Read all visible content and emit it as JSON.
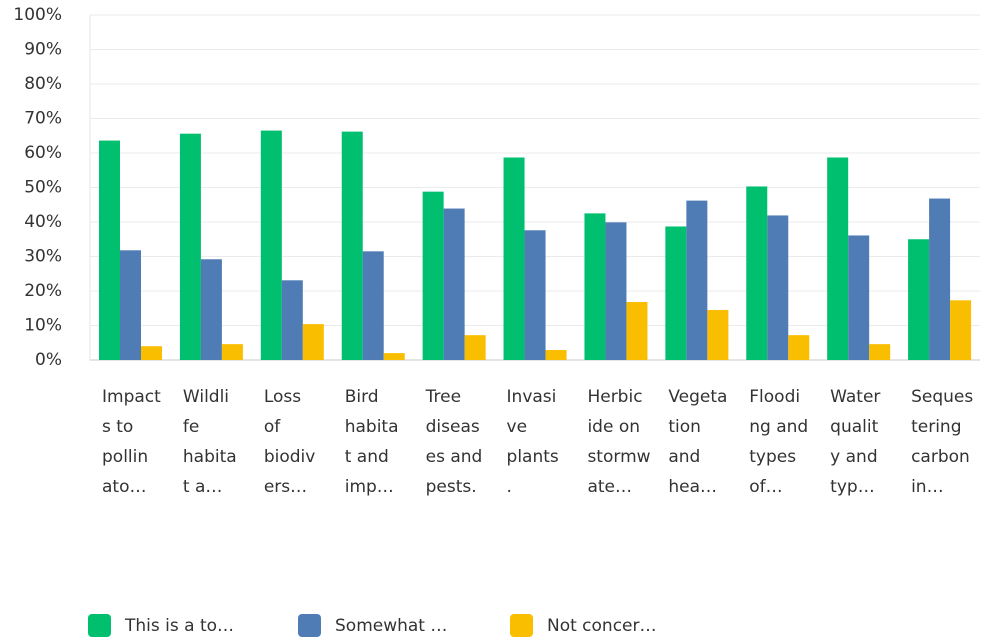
{
  "chart_data": {
    "type": "bar",
    "categories": [
      [
        "Impact",
        "s to",
        "pollin",
        "ato…"
      ],
      [
        "Wildli",
        "fe",
        "habita",
        "t a…"
      ],
      [
        "Loss",
        "of",
        "biodiv",
        "ers…"
      ],
      [
        "Bird",
        "habita",
        "t and",
        "imp…"
      ],
      [
        "Tree",
        "diseas",
        "es and",
        "pests."
      ],
      [
        "Invasi",
        "ve",
        "plants",
        "."
      ],
      [
        "Herbic",
        "ide on",
        "stormw",
        "ate…"
      ],
      [
        "Vegeta",
        "tion",
        "and",
        "hea…"
      ],
      [
        "Floodi",
        "ng and",
        "types",
        "of…"
      ],
      [
        "Water",
        "qualit",
        "y and",
        "typ…"
      ],
      [
        "Seques",
        "tering",
        "carbon",
        "in…"
      ]
    ],
    "series": [
      {
        "name": "This is a to…",
        "color": "#00bf6f",
        "values": [
          63.6,
          65.6,
          66.5,
          66.2,
          48.8,
          58.7,
          42.5,
          38.7,
          50.3,
          58.7,
          35.0
        ]
      },
      {
        "name": "Somewhat …",
        "color": "#507cb6",
        "values": [
          31.8,
          29.2,
          23.1,
          31.5,
          43.9,
          37.6,
          39.9,
          46.2,
          41.9,
          36.1,
          46.8
        ]
      },
      {
        "name": "Not concer…",
        "color": "#f9be00",
        "values": [
          4.0,
          4.6,
          10.4,
          2.0,
          7.2,
          2.9,
          16.8,
          14.5,
          7.2,
          4.6,
          17.3
        ]
      }
    ],
    "ylim": [
      0,
      100
    ],
    "yticks": [
      {
        "value": 0,
        "label": "0%"
      },
      {
        "value": 10,
        "label": "10%"
      },
      {
        "value": 20,
        "label": "20%"
      },
      {
        "value": 30,
        "label": "30%"
      },
      {
        "value": 40,
        "label": "40%"
      },
      {
        "value": 50,
        "label": "50%"
      },
      {
        "value": 60,
        "label": "60%"
      },
      {
        "value": 70,
        "label": "70%"
      },
      {
        "value": 80,
        "label": "80%"
      },
      {
        "value": 90,
        "label": "90%"
      },
      {
        "value": 100,
        "label": "100%"
      }
    ],
    "grid": true
  }
}
